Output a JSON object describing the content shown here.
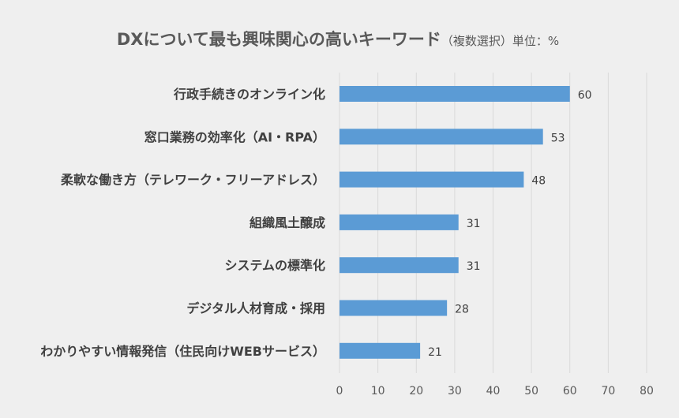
{
  "chart_data": {
    "type": "bar",
    "orientation": "horizontal",
    "title": "DXについて最も興味関心の高いキーワード",
    "subtitle": "（複数選択）単位：%",
    "categories": [
      "行政手続きのオンライン化",
      "窓口業務の効率化（AI・RPA）",
      "柔軟な働き方（テレワーク・フリーアドレス）",
      "組織風土醸成",
      "システムの標準化",
      "デジタル人材育成・採用",
      "わかりやすい情報発信（住民向けWEBサービス）"
    ],
    "values": [
      60,
      53,
      48,
      31,
      31,
      28,
      21
    ],
    "xlim": [
      0,
      80
    ],
    "xticks": [
      0,
      10,
      20,
      30,
      40,
      50,
      60,
      70,
      80
    ],
    "grid": true,
    "legend": "none",
    "colors": {
      "bar": "#5b9bd5",
      "background": "#efefef"
    }
  }
}
